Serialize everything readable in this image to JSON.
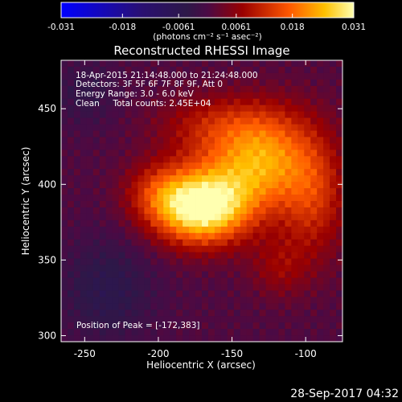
{
  "chart_data": {
    "type": "heatmap",
    "title": "Reconstructed RHESSI Image",
    "xlabel": "Heliocentric X (arcsec)",
    "ylabel": "Heliocentric Y (arcsec)",
    "xlim": [
      -266,
      -75
    ],
    "ylim": [
      296,
      482
    ],
    "x_ticks": [
      "-250",
      "-200",
      "-150",
      "-100"
    ],
    "x_tick_values": [
      -250,
      -200,
      -150,
      -100
    ],
    "y_ticks": [
      "300",
      "350",
      "400",
      "450"
    ],
    "y_tick_values": [
      300,
      350,
      400,
      450
    ],
    "colorbar": {
      "ticks": [
        "-0.031",
        "-0.018",
        "-0.0061",
        "0.0061",
        "0.018",
        "0.031"
      ],
      "tick_values": [
        -0.031,
        -0.018,
        -0.0061,
        0.0061,
        0.018,
        0.031
      ],
      "range": [
        -0.031,
        0.031
      ],
      "unit_label": "(photons cm⁻² s⁻¹ asec⁻²)"
    },
    "annotations": [
      "18-Apr-2015 21:14:48.000 to 21:24:48.000",
      "Detectors: 3F 5F 6F 7F 8F 9F, Att 0",
      "Energy Range: 3.0 - 6.0 keV",
      "Clean     Total counts: 2.45E+04"
    ],
    "peak_label": "Position of Peak = [-172,383]",
    "peak": [
      -172,
      383
    ],
    "peak_value": 0.031,
    "blobs": [
      {
        "x": -172,
        "y": 383,
        "sx": 22,
        "sy": 16,
        "amp": 0.028
      },
      {
        "x": -150,
        "y": 405,
        "sx": 26,
        "sy": 22,
        "amp": 0.014
      },
      {
        "x": -125,
        "y": 420,
        "sx": 20,
        "sy": 22,
        "amp": 0.013
      },
      {
        "x": -95,
        "y": 395,
        "sx": 16,
        "sy": 30,
        "amp": 0.012
      },
      {
        "x": -160,
        "y": 440,
        "sx": 28,
        "sy": 14,
        "amp": 0.008
      },
      {
        "x": -200,
        "y": 395,
        "sx": 16,
        "sy": 14,
        "amp": 0.009
      },
      {
        "x": -118,
        "y": 345,
        "sx": 14,
        "sy": 14,
        "amp": 0.006
      },
      {
        "x": -235,
        "y": 330,
        "sx": 22,
        "sy": 24,
        "amp": -0.006
      },
      {
        "x": -250,
        "y": 460,
        "sx": 16,
        "sy": 16,
        "amp": -0.004
      }
    ]
  },
  "footer": {
    "timestamp": "28-Sep-2017 04:32"
  }
}
